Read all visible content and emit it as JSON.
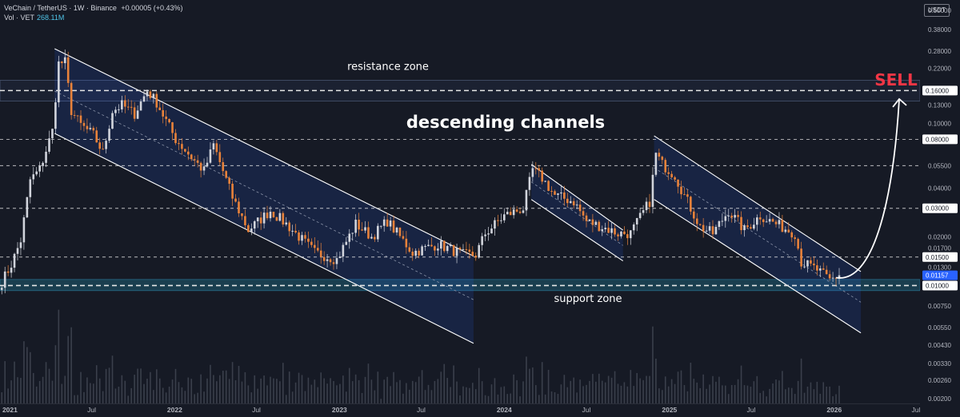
{
  "header": {
    "title": "VeChain / TetherUS · 1W · Binance",
    "change": "+0.00005 (+0.43%)",
    "volume_label": "Vol · VET",
    "volume_value": "268.11M"
  },
  "currency_button": "USDT",
  "chart_data": {
    "type": "candlestick",
    "symbol": "VET/USDT",
    "interval": "1W",
    "exchange": "Binance",
    "y_scale": "log",
    "ylim": [
      0.00185,
      0.58
    ],
    "xlim": [
      "2020-12-10",
      "2026-07-10"
    ],
    "x_ticks": [
      {
        "date": "2021-01-01",
        "label": "2021"
      },
      {
        "date": "2021-07-01",
        "label": "Jul"
      },
      {
        "date": "2022-01-01",
        "label": "2022"
      },
      {
        "date": "2022-07-01",
        "label": "Jul"
      },
      {
        "date": "2023-01-01",
        "label": "2023"
      },
      {
        "date": "2023-07-01",
        "label": "Jul"
      },
      {
        "date": "2024-01-01",
        "label": "2024"
      },
      {
        "date": "2024-07-01",
        "label": "Jul"
      },
      {
        "date": "2025-01-01",
        "label": "2025"
      },
      {
        "date": "2025-07-01",
        "label": "Jul"
      },
      {
        "date": "2026-01-01",
        "label": "2026"
      },
      {
        "date": "2026-07-01",
        "label": "Jul"
      }
    ],
    "y_ticks": [
      {
        "value": 0.5,
        "label": "0.50000"
      },
      {
        "value": 0.38,
        "label": "0.38000"
      },
      {
        "value": 0.28,
        "label": "0.28000"
      },
      {
        "value": 0.22,
        "label": "0.22000"
      },
      {
        "value": 0.13,
        "label": "0.13000"
      },
      {
        "value": 0.1,
        "label": "0.10000"
      },
      {
        "value": 0.055,
        "label": "0.05500"
      },
      {
        "value": 0.04,
        "label": "0.04000"
      },
      {
        "value": 0.017,
        "label": "0.01700"
      },
      {
        "value": 0.0075,
        "label": "0.00750"
      },
      {
        "value": 0.0055,
        "label": "0.00550"
      },
      {
        "value": 0.0043,
        "label": "0.00430"
      },
      {
        "value": 0.0033,
        "label": "0.00330"
      },
      {
        "value": 0.0026,
        "label": "0.00260"
      },
      {
        "value": 0.002,
        "label": "0.00200"
      }
    ],
    "price_levels": [
      {
        "value": 0.16,
        "label": "0.16000",
        "style": "dashed-bold"
      },
      {
        "value": 0.08,
        "label": "0.08000",
        "style": "dashed"
      },
      {
        "value": 0.055,
        "style": "dashed"
      },
      {
        "value": 0.03,
        "label": "0.03000",
        "style": "dashed"
      },
      {
        "value": 0.015,
        "label": "0.01500",
        "style": "dashed"
      },
      {
        "value": 0.01,
        "label": "0.01000",
        "style": "dashed-bold"
      }
    ],
    "other_axis_labels": [
      {
        "value": 0.02,
        "label": "0.02000"
      },
      {
        "value": 0.013,
        "label": "0.01300"
      }
    ],
    "current_price": {
      "value": 0.01157,
      "label": "0.01157"
    },
    "zones": [
      {
        "name": "resistance zone",
        "from": 0.138,
        "to": 0.185
      },
      {
        "name": "support zone",
        "from": 0.0093,
        "to": 0.0109
      }
    ],
    "annotations": {
      "channels_title": "descending channels",
      "sell": "SELL",
      "resistance": "resistance zone",
      "support": "support zone"
    },
    "channels": [
      {
        "upper": [
          [
            "2021-04-10",
            0.29
          ],
          [
            "2023-10-25",
            0.0152
          ]
        ],
        "lower": [
          [
            "2021-04-10",
            0.087
          ],
          [
            "2023-10-25",
            0.0044
          ]
        ]
      },
      {
        "upper": [
          [
            "2024-03-01",
            0.056
          ],
          [
            "2024-09-20",
            0.022
          ]
        ],
        "lower": [
          [
            "2024-03-01",
            0.034
          ],
          [
            "2024-09-20",
            0.0142
          ]
        ]
      },
      {
        "upper": [
          [
            "2024-11-28",
            0.084
          ],
          [
            "2026-03-01",
            0.0122
          ]
        ],
        "lower": [
          [
            "2024-11-28",
            0.034
          ],
          [
            "2026-03-01",
            0.0051
          ]
        ]
      }
    ],
    "projection_arrow": {
      "from": [
        "2026-01-05",
        0.0112
      ],
      "to": [
        "2026-05-25",
        0.142
      ]
    },
    "series": [
      {
        "type": "price",
        "points": [
          [
            "2020-12-14",
            0.0105
          ],
          [
            "2021-01-04",
            0.0135
          ],
          [
            "2021-01-25",
            0.019
          ],
          [
            "2021-02-15",
            0.045
          ],
          [
            "2021-03-08",
            0.052
          ],
          [
            "2021-04-05",
            0.09
          ],
          [
            "2021-04-19",
            0.235
          ],
          [
            "2021-05-03",
            0.24
          ],
          [
            "2021-05-17",
            0.12
          ],
          [
            "2021-06-07",
            0.098
          ],
          [
            "2021-07-05",
            0.085
          ],
          [
            "2021-07-26",
            0.066
          ],
          [
            "2021-08-16",
            0.12
          ],
          [
            "2021-09-06",
            0.13
          ],
          [
            "2021-10-04",
            0.115
          ],
          [
            "2021-11-01",
            0.16
          ],
          [
            "2021-11-22",
            0.135
          ],
          [
            "2022-01-03",
            0.08
          ],
          [
            "2022-02-07",
            0.062
          ],
          [
            "2022-03-07",
            0.051
          ],
          [
            "2022-03-28",
            0.074
          ],
          [
            "2022-05-09",
            0.035
          ],
          [
            "2022-06-13",
            0.022
          ],
          [
            "2022-08-01",
            0.029
          ],
          [
            "2022-09-05",
            0.024
          ],
          [
            "2022-11-07",
            0.016
          ],
          [
            "2022-12-26",
            0.0145
          ],
          [
            "2023-02-06",
            0.024
          ],
          [
            "2023-03-13",
            0.02
          ],
          [
            "2023-04-17",
            0.025
          ],
          [
            "2023-06-12",
            0.016
          ],
          [
            "2023-08-07",
            0.018
          ],
          [
            "2023-10-02",
            0.0155
          ],
          [
            "2023-10-30",
            0.0155
          ],
          [
            "2023-11-20",
            0.021
          ],
          [
            "2024-01-01",
            0.027
          ],
          [
            "2024-02-12",
            0.03
          ],
          [
            "2024-03-04",
            0.052
          ],
          [
            "2024-03-25",
            0.046
          ],
          [
            "2024-04-22",
            0.036
          ],
          [
            "2024-06-03",
            0.033
          ],
          [
            "2024-07-01",
            0.025
          ],
          [
            "2024-08-05",
            0.023
          ],
          [
            "2024-09-09",
            0.021
          ],
          [
            "2024-10-07",
            0.021
          ],
          [
            "2024-11-18",
            0.033
          ],
          [
            "2024-12-02",
            0.065
          ],
          [
            "2024-12-16",
            0.056
          ],
          [
            "2025-01-13",
            0.048
          ],
          [
            "2025-02-03",
            0.036
          ],
          [
            "2025-03-10",
            0.023
          ],
          [
            "2025-04-07",
            0.021
          ],
          [
            "2025-05-12",
            0.029
          ],
          [
            "2025-06-16",
            0.022
          ],
          [
            "2025-07-21",
            0.027
          ],
          [
            "2025-08-25",
            0.024
          ],
          [
            "2025-10-06",
            0.021
          ],
          [
            "2025-10-20",
            0.014
          ],
          [
            "2025-11-24",
            0.0125
          ],
          [
            "2025-12-22",
            0.0108
          ],
          [
            "2026-01-12",
            0.01157
          ]
        ]
      }
    ],
    "volume_series": {
      "name": "Vol · VET",
      "last_value": "268.11M"
    }
  }
}
